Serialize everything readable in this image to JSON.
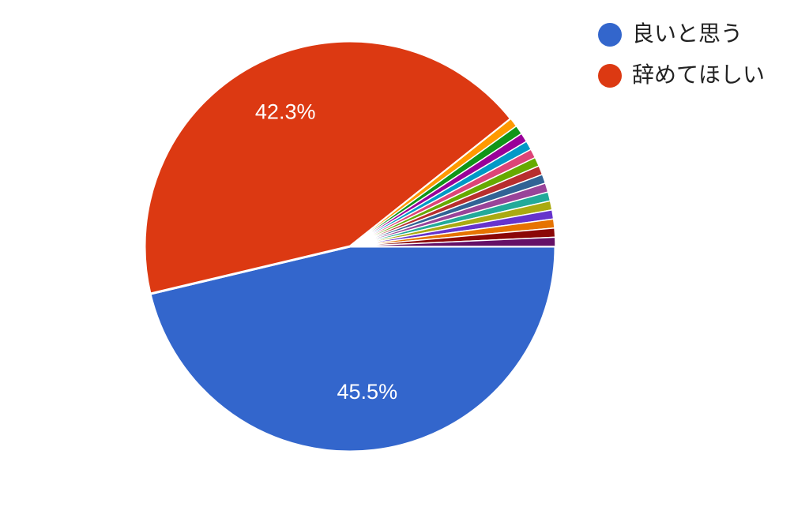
{
  "chart_data": {
    "type": "pie",
    "title": "",
    "slices": [
      {
        "label": "良いと思う",
        "value": 45.5,
        "color": "#3366cc",
        "display": "45.5%"
      },
      {
        "label": "辞めてほしい",
        "value": 42.3,
        "color": "#dc3912",
        "display": "42.3%"
      },
      {
        "label": "",
        "value": 0.7,
        "color": "#ff9900"
      },
      {
        "label": "",
        "value": 0.7,
        "color": "#109618"
      },
      {
        "label": "",
        "value": 0.7,
        "color": "#990099"
      },
      {
        "label": "",
        "value": 0.7,
        "color": "#0099c6"
      },
      {
        "label": "",
        "value": 0.7,
        "color": "#dd4477"
      },
      {
        "label": "",
        "value": 0.7,
        "color": "#66aa00"
      },
      {
        "label": "",
        "value": 0.7,
        "color": "#b82e2e"
      },
      {
        "label": "",
        "value": 0.7,
        "color": "#316395"
      },
      {
        "label": "",
        "value": 0.7,
        "color": "#994499"
      },
      {
        "label": "",
        "value": 0.7,
        "color": "#22aa99"
      },
      {
        "label": "",
        "value": 0.7,
        "color": "#aaaa11"
      },
      {
        "label": "",
        "value": 0.7,
        "color": "#6633cc"
      },
      {
        "label": "",
        "value": 0.7,
        "color": "#e67300"
      },
      {
        "label": "",
        "value": 0.7,
        "color": "#8b0707"
      },
      {
        "label": "",
        "value": 0.7,
        "color": "#651067"
      }
    ],
    "legend": {
      "position": "top-right",
      "entries": [
        {
          "label": "良いと思う",
          "color": "#3366cc"
        },
        {
          "label": "辞めてほしい",
          "color": "#dc3912"
        }
      ]
    }
  }
}
